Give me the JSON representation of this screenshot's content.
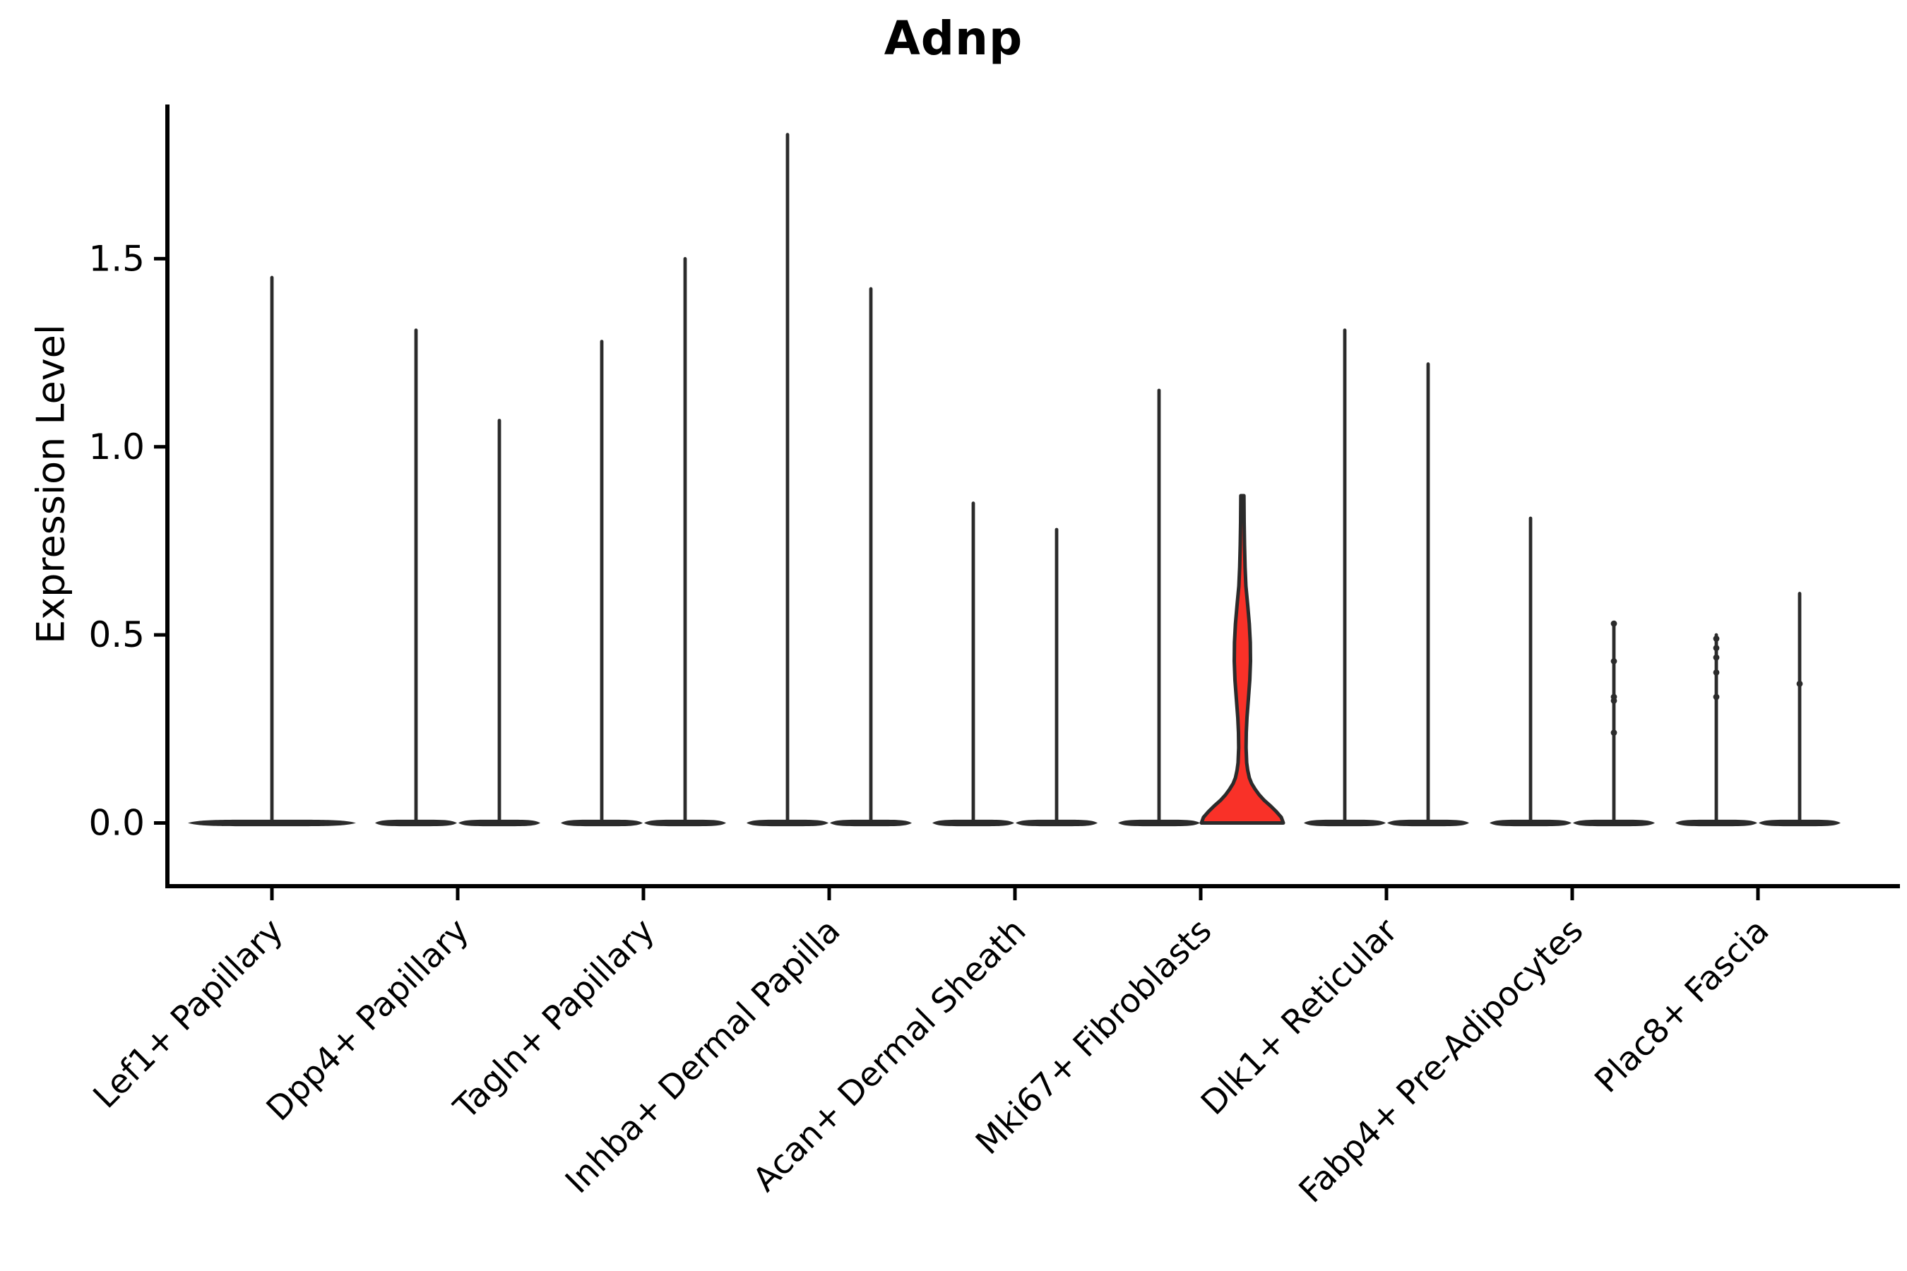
{
  "figure": {
    "title": "Adnp",
    "ylabel": "Expression Level",
    "background": "#ffffff"
  },
  "chart_data": {
    "type": "violin",
    "title": "Adnp",
    "xlabel": "",
    "ylabel": "Expression Level",
    "ylim": [
      -0.168,
      1.91
    ],
    "ytick_values": [
      0.0,
      0.5,
      1.0,
      1.5
    ],
    "ytick_labels": [
      "0.0",
      "0.5",
      "1.0",
      "1.5"
    ],
    "grid": false,
    "legend": "none",
    "categories": [
      "Lef1+ Papillary",
      "Dpp4+ Papillary",
      "Tagln+ Papillary",
      "Inhba+ Dermal Papilla",
      "Acan+ Dermal Sheath",
      "Mki67+ Fibroblasts",
      "Dlk1+ Reticular",
      "Fabp4+ Pre-Adipocytes",
      "Plac8+ Fascia"
    ],
    "groups": [
      {
        "category": "Lef1+ Papillary",
        "violins": [
          {
            "slot": "center",
            "max": 1.45,
            "highlight": false,
            "dots": []
          }
        ]
      },
      {
        "category": "Dpp4+ Papillary",
        "violins": [
          {
            "slot": "left",
            "max": 1.31,
            "highlight": false,
            "dots": []
          },
          {
            "slot": "right",
            "max": 1.07,
            "highlight": false,
            "dots": []
          }
        ]
      },
      {
        "category": "Tagln+ Papillary",
        "violins": [
          {
            "slot": "left",
            "max": 1.28,
            "highlight": false,
            "dots": []
          },
          {
            "slot": "right",
            "max": 1.5,
            "highlight": false,
            "dots": []
          }
        ]
      },
      {
        "category": "Inhba+ Dermal Papilla",
        "violins": [
          {
            "slot": "left",
            "max": 1.83,
            "highlight": false,
            "dots": []
          },
          {
            "slot": "right",
            "max": 1.42,
            "highlight": false,
            "dots": []
          }
        ]
      },
      {
        "category": "Acan+ Dermal Sheath",
        "violins": [
          {
            "slot": "left",
            "max": 0.85,
            "highlight": false,
            "dots": []
          },
          {
            "slot": "right",
            "max": 0.78,
            "highlight": false,
            "dots": []
          }
        ]
      },
      {
        "category": "Mki67+ Fibroblasts",
        "violins": [
          {
            "slot": "left",
            "max": 1.15,
            "highlight": false,
            "dots": []
          },
          {
            "slot": "right",
            "max": 0.87,
            "highlight": true,
            "dots": []
          }
        ]
      },
      {
        "category": "Dlk1+ Reticular",
        "violins": [
          {
            "slot": "left",
            "max": 1.31,
            "highlight": false,
            "dots": []
          },
          {
            "slot": "right",
            "max": 1.22,
            "highlight": false,
            "dots": []
          }
        ]
      },
      {
        "category": "Fabp4+ Pre-Adipocytes",
        "violins": [
          {
            "slot": "left",
            "max": 0.81,
            "highlight": false,
            "dots": []
          },
          {
            "slot": "right",
            "max": 0.53,
            "highlight": false,
            "dots": [
              0.53,
              0.43,
              0.335,
              0.325,
              0.24
            ]
          }
        ]
      },
      {
        "category": "Plac8+ Fascia",
        "violins": [
          {
            "slot": "left",
            "max": 0.5,
            "highlight": false,
            "dots": [
              0.49,
              0.465,
              0.44,
              0.4,
              0.335
            ]
          },
          {
            "slot": "right",
            "max": 0.61,
            "highlight": false,
            "dots": [
              0.37
            ]
          }
        ]
      }
    ],
    "highlight_profile": [
      [
        0.0,
        1.0
      ],
      [
        0.015,
        0.95
      ],
      [
        0.03,
        0.83
      ],
      [
        0.045,
        0.69
      ],
      [
        0.06,
        0.535
      ],
      [
        0.075,
        0.41
      ],
      [
        0.09,
        0.31
      ],
      [
        0.105,
        0.225
      ],
      [
        0.12,
        0.17
      ],
      [
        0.14,
        0.13
      ],
      [
        0.16,
        0.105
      ],
      [
        0.2,
        0.09
      ],
      [
        0.24,
        0.095
      ],
      [
        0.28,
        0.112
      ],
      [
        0.33,
        0.147
      ],
      [
        0.38,
        0.181
      ],
      [
        0.43,
        0.198
      ],
      [
        0.48,
        0.193
      ],
      [
        0.53,
        0.169
      ],
      [
        0.58,
        0.129
      ],
      [
        0.63,
        0.086
      ],
      [
        0.68,
        0.066
      ],
      [
        0.74,
        0.052
      ],
      [
        0.8,
        0.043
      ],
      [
        0.87,
        0.038
      ]
    ],
    "colors": {
      "violin_outline": "#2b2b2b",
      "highlight_fill": "#f93128",
      "axis": "#000000",
      "text": "#000000",
      "background": "#ffffff"
    }
  }
}
